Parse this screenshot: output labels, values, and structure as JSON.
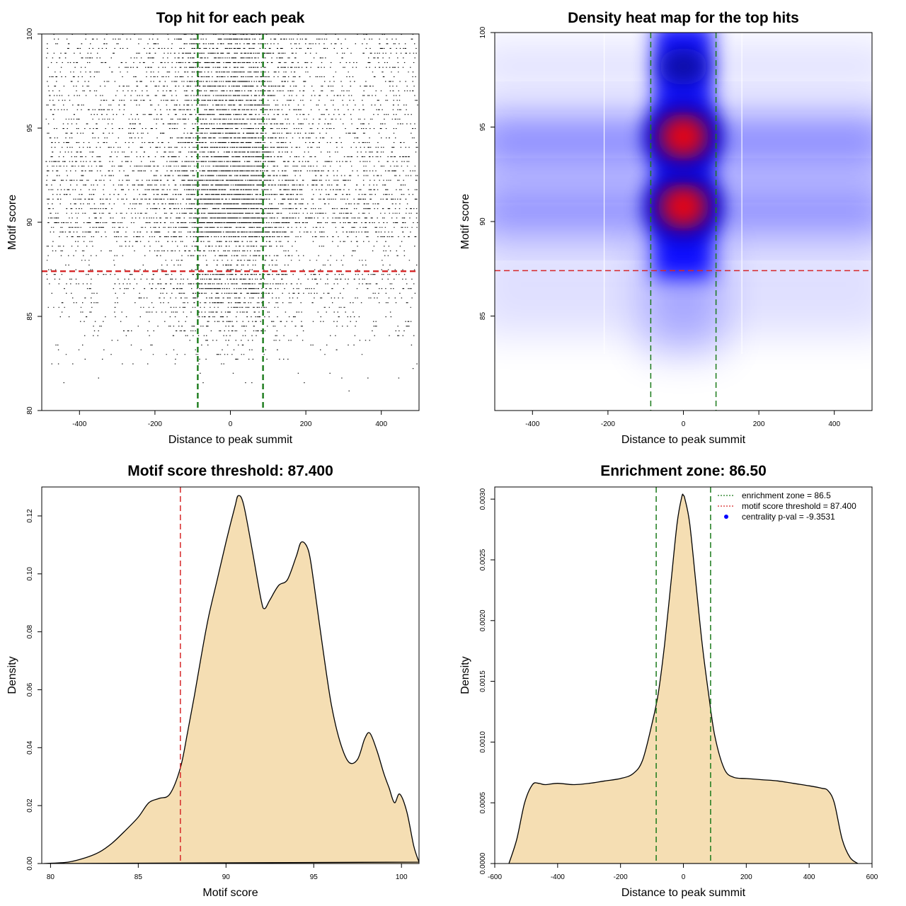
{
  "chart_data": [
    {
      "type": "scatter",
      "title": "Top hit for each peak",
      "xlabel": "Distance to peak summit",
      "ylabel": "Motif score",
      "xlim": [
        -500,
        500
      ],
      "ylim": [
        80,
        100
      ],
      "xticks": [
        "-400",
        "-200",
        "0",
        "200",
        "400"
      ],
      "yticks": [
        "80",
        "85",
        "90",
        "95",
        "100"
      ],
      "hlines": [
        {
          "y": 87.4,
          "color": "#d62728",
          "style": "dashed"
        }
      ],
      "vlines": [
        {
          "x": -86.5,
          "color": "#1a7a1a",
          "style": "dashed"
        },
        {
          "x": 86.5,
          "color": "#1a7a1a",
          "style": "dashed"
        }
      ],
      "point_color": "#000000",
      "grid": false
    },
    {
      "type": "heatmap",
      "title": "Density heat map for the top hits",
      "xlabel": "Distance to peak summit",
      "ylabel": "Motif score",
      "xlim": [
        -500,
        500
      ],
      "ylim": [
        80,
        100
      ],
      "xticks": [
        "-400",
        "-200",
        "0",
        "200",
        "400"
      ],
      "yticks": [
        "85",
        "90",
        "95",
        "100"
      ],
      "hotspots": [
        {
          "x": 0,
          "y": 90.8,
          "level": "high"
        },
        {
          "x": 0,
          "y": 94.5,
          "level": "high"
        },
        {
          "x": 0,
          "y": 98.2,
          "level": "medium"
        }
      ],
      "colors": {
        "low": "#ffffff",
        "mid": "#0000ff",
        "high": "#ff0000"
      },
      "hlines": [
        {
          "y": 87.4,
          "color": "#d62728",
          "style": "dashed"
        }
      ],
      "vlines": [
        {
          "x": -86.5,
          "color": "#1a7a1a",
          "style": "dashed"
        },
        {
          "x": 86.5,
          "color": "#1a7a1a",
          "style": "dashed"
        }
      ],
      "grid": false
    },
    {
      "type": "area",
      "title": "Motif score threshold: 87.400",
      "xlabel": "Motif score",
      "ylabel": "Density",
      "xlim": [
        79.5,
        101
      ],
      "ylim": [
        0,
        0.13
      ],
      "xticks": [
        "80",
        "85",
        "90",
        "95",
        "100"
      ],
      "yticks": [
        "0.00",
        "0.02",
        "0.04",
        "0.06",
        "0.08",
        "0.10",
        "0.12"
      ],
      "x": [
        79.6,
        81,
        82,
        82.8,
        83.5,
        84.2,
        85,
        85.6,
        86.2,
        86.8,
        87.4,
        87.8,
        88.2,
        88.6,
        89,
        89.5,
        90,
        90.5,
        90.7,
        91,
        91.5,
        92,
        92.2,
        92.5,
        93,
        93.5,
        94,
        94.3,
        94.7,
        95,
        95.5,
        96,
        96.5,
        97,
        97.5,
        97.9,
        98.2,
        98.6,
        99,
        99.3,
        99.6,
        99.9,
        100.3,
        100.7,
        101
      ],
      "y": [
        0.0,
        0.0005,
        0.002,
        0.004,
        0.007,
        0.011,
        0.016,
        0.021,
        0.0225,
        0.024,
        0.033,
        0.045,
        0.058,
        0.072,
        0.085,
        0.098,
        0.111,
        0.123,
        0.127,
        0.124,
        0.108,
        0.091,
        0.088,
        0.091,
        0.096,
        0.098,
        0.106,
        0.111,
        0.108,
        0.097,
        0.075,
        0.055,
        0.042,
        0.035,
        0.036,
        0.043,
        0.045,
        0.039,
        0.031,
        0.026,
        0.021,
        0.024,
        0.018,
        0.006,
        0.0005
      ],
      "fill_color": "#f5deb3",
      "line_color": "#000000",
      "vlines": [
        {
          "x": 87.4,
          "color": "#d62728",
          "style": "dashed"
        }
      ],
      "grid": false
    },
    {
      "type": "area",
      "title": "Enrichment zone: 86.50",
      "xlabel": "Distance to peak summit",
      "ylabel": "Density",
      "xlim": [
        -600,
        600
      ],
      "ylim": [
        0,
        0.0031
      ],
      "xticks": [
        "-600",
        "-400",
        "-200",
        "0",
        "200",
        "400",
        "600"
      ],
      "yticks": [
        "0.0000",
        "0.0005",
        "0.0010",
        "0.0015",
        "0.0020",
        "0.0025",
        "0.0030"
      ],
      "x": [
        -555,
        -530,
        -505,
        -480,
        -460,
        -440,
        -400,
        -350,
        -300,
        -250,
        -200,
        -160,
        -130,
        -100,
        -80,
        -60,
        -40,
        -20,
        -5,
        0,
        5,
        20,
        40,
        60,
        80,
        100,
        130,
        160,
        200,
        250,
        300,
        350,
        400,
        440,
        460,
        480,
        505,
        530,
        555
      ],
      "y": [
        0.0,
        0.0002,
        0.0005,
        0.00065,
        0.00066,
        0.00065,
        0.00066,
        0.00065,
        0.00066,
        0.00068,
        0.0007,
        0.00074,
        0.00085,
        0.00115,
        0.0014,
        0.0018,
        0.0023,
        0.0028,
        0.00302,
        0.00303,
        0.003,
        0.0028,
        0.0023,
        0.0018,
        0.0014,
        0.00105,
        0.00078,
        0.00071,
        0.0007,
        0.00069,
        0.00068,
        0.00066,
        0.00064,
        0.00062,
        0.0006,
        0.0005,
        0.0002,
        5e-05,
        0.0
      ],
      "fill_color": "#f5deb3",
      "line_color": "#000000",
      "vlines": [
        {
          "x": -86.5,
          "color": "#1a7a1a",
          "style": "dashed"
        },
        {
          "x": 86.5,
          "color": "#1a7a1a",
          "style": "dashed"
        }
      ],
      "legend": {
        "position": "top-right",
        "entries": [
          {
            "label": "enrichment zone = 86.5",
            "color": "#1a7a1a",
            "marker": "dotted-line"
          },
          {
            "label": "motif score threshold = 87.400",
            "color": "#d62728",
            "marker": "dotted-line"
          },
          {
            "label": "centrality p-val = -9.3531",
            "color": "#0000ff",
            "marker": "point"
          }
        ]
      },
      "grid": false
    }
  ]
}
